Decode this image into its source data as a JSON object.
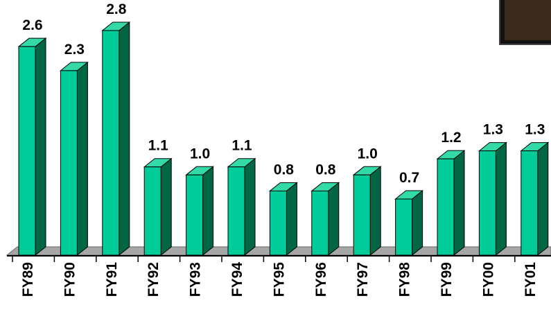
{
  "chart_data": {
    "type": "bar3d",
    "categories": [
      "FY89",
      "FY90",
      "FY91",
      "FY92",
      "FY93",
      "FY94",
      "FY95",
      "FY96",
      "FY97",
      "FY98",
      "FY99",
      "FY00",
      "FY01"
    ],
    "values": [
      2.6,
      2.3,
      2.8,
      1.1,
      1.0,
      1.1,
      0.8,
      0.8,
      1.0,
      0.7,
      1.2,
      1.3,
      1.3
    ],
    "value_labels": [
      "2.6",
      "2.3",
      "2.8",
      "1.1",
      "1.0",
      "1.1",
      "0.8",
      "0.8",
      "1.0",
      "0.7",
      "1.2",
      "1.3",
      "1.3"
    ],
    "color": "#00cc99",
    "side_color": "#006644",
    "top_color": "#33d9a6"
  }
}
